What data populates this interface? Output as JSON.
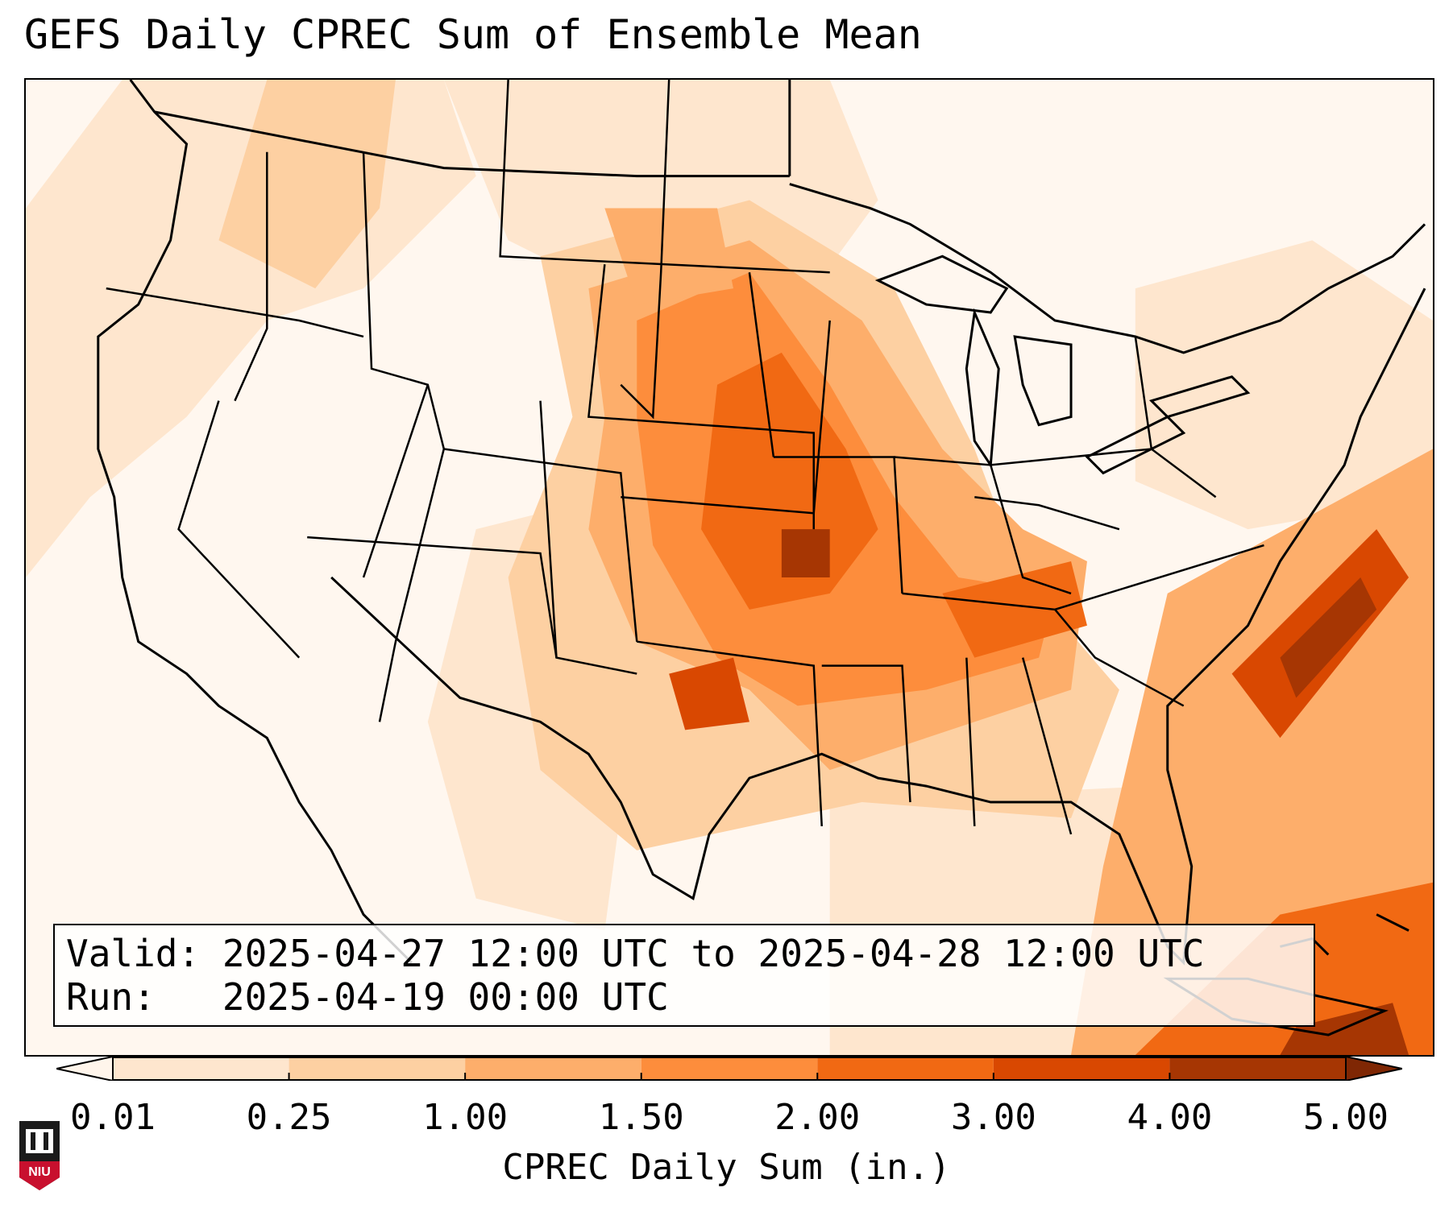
{
  "title": "GEFS Daily CPREC Sum of Ensemble Mean",
  "info": {
    "valid_label": "Valid:",
    "valid_value": "2025-04-27 12:00 UTC to 2025-04-28 12:00 UTC",
    "run_label": "Run:",
    "run_value": "2025-04-19 00:00 UTC"
  },
  "colorbar": {
    "label": "CPREC Daily Sum (in.)",
    "ticks": [
      "0.01",
      "0.25",
      "1.00",
      "1.50",
      "2.00",
      "3.00",
      "4.00",
      "5.00"
    ],
    "colors": [
      "#fff5eb",
      "#fee6ce",
      "#fdd0a2",
      "#fdae6b",
      "#fd8d3c",
      "#f16913",
      "#d94801",
      "#a63603",
      "#7f2704"
    ],
    "extends": "both"
  },
  "map": {
    "region": "Contiguous United States",
    "background_color": "#fff7ef",
    "precip_areas": [
      {
        "level": 1,
        "color": "#fee6ce"
      },
      {
        "level": 2,
        "color": "#fdd0a2"
      },
      {
        "level": 3,
        "color": "#fdae6b"
      },
      {
        "level": 4,
        "color": "#fd8d3c"
      },
      {
        "level": 5,
        "color": "#f16913"
      },
      {
        "level": 6,
        "color": "#d94801"
      },
      {
        "level": 7,
        "color": "#a63603"
      }
    ]
  },
  "logo": {
    "text": "NIU",
    "color": "#c8102e"
  }
}
